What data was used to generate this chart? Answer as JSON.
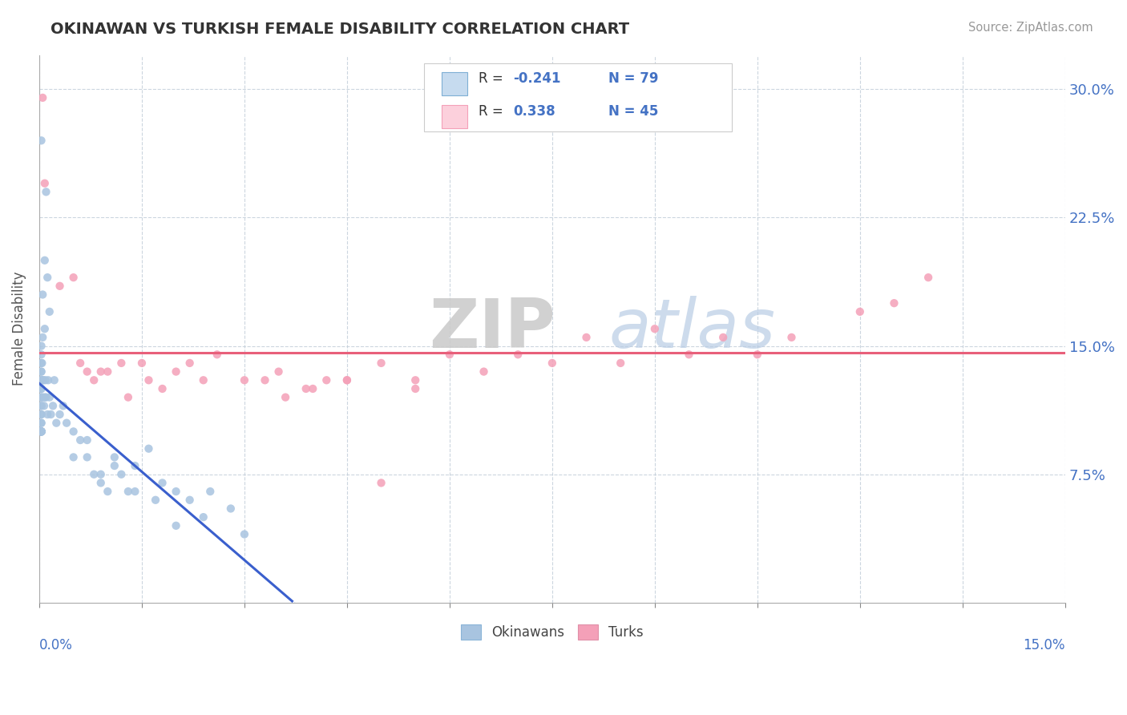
{
  "title": "OKINAWAN VS TURKISH FEMALE DISABILITY CORRELATION CHART",
  "source": "Source: ZipAtlas.com",
  "ylabel": "Female Disability",
  "okinawan_R": -0.241,
  "okinawan_N": 79,
  "turkish_R": 0.338,
  "turkish_N": 45,
  "okinawan_scatter_color": "#a8c4e0",
  "turkish_scatter_color": "#f4a0b8",
  "blue_line_color": "#3a5fcd",
  "pink_line_color": "#e8607a",
  "yticks": [
    0.075,
    0.15,
    0.225,
    0.3
  ],
  "ytick_labels": [
    "7.5%",
    "15.0%",
    "22.5%",
    "30.0%"
  ],
  "xlim": [
    0.0,
    0.15
  ],
  "ylim": [
    0.0,
    0.32
  ],
  "ok_x": [
    0.0003,
    0.001,
    0.0008,
    0.0012,
    0.0005,
    0.0015,
    0.0008,
    0.0005,
    0.0003,
    0.0003,
    0.0003,
    0.0003,
    0.0003,
    0.0003,
    0.0003,
    0.0003,
    0.0003,
    0.0003,
    0.0003,
    0.0003,
    0.0003,
    0.0003,
    0.0003,
    0.0003,
    0.0003,
    0.0003,
    0.0003,
    0.0003,
    0.0003,
    0.0003,
    0.0003,
    0.0003,
    0.0003,
    0.0003,
    0.0003,
    0.0003,
    0.0004,
    0.0005,
    0.0005,
    0.0006,
    0.0007,
    0.0008,
    0.0009,
    0.001,
    0.0012,
    0.0013,
    0.0015,
    0.0017,
    0.002,
    0.0022,
    0.0025,
    0.003,
    0.0035,
    0.004,
    0.005,
    0.006,
    0.007,
    0.008,
    0.009,
    0.01,
    0.011,
    0.012,
    0.013,
    0.014,
    0.016,
    0.018,
    0.02,
    0.022,
    0.025,
    0.028,
    0.005,
    0.007,
    0.009,
    0.011,
    0.014,
    0.017,
    0.02,
    0.024,
    0.03
  ],
  "ok_y": [
    0.27,
    0.24,
    0.2,
    0.19,
    0.18,
    0.17,
    0.16,
    0.155,
    0.15,
    0.145,
    0.14,
    0.135,
    0.135,
    0.13,
    0.13,
    0.125,
    0.125,
    0.12,
    0.12,
    0.115,
    0.115,
    0.11,
    0.11,
    0.105,
    0.105,
    0.1,
    0.1,
    0.1,
    0.1,
    0.1,
    0.1,
    0.1,
    0.1,
    0.1,
    0.1,
    0.1,
    0.14,
    0.13,
    0.12,
    0.13,
    0.115,
    0.12,
    0.13,
    0.12,
    0.11,
    0.13,
    0.12,
    0.11,
    0.115,
    0.13,
    0.105,
    0.11,
    0.115,
    0.105,
    0.1,
    0.095,
    0.085,
    0.075,
    0.07,
    0.065,
    0.085,
    0.075,
    0.065,
    0.08,
    0.09,
    0.07,
    0.065,
    0.06,
    0.065,
    0.055,
    0.085,
    0.095,
    0.075,
    0.08,
    0.065,
    0.06,
    0.045,
    0.05,
    0.04
  ],
  "tr_x": [
    0.0005,
    0.0008,
    0.003,
    0.005,
    0.006,
    0.007,
    0.008,
    0.009,
    0.01,
    0.012,
    0.013,
    0.015,
    0.016,
    0.018,
    0.02,
    0.022,
    0.024,
    0.026,
    0.03,
    0.033,
    0.036,
    0.039,
    0.042,
    0.045,
    0.05,
    0.055,
    0.06,
    0.065,
    0.07,
    0.075,
    0.08,
    0.085,
    0.09,
    0.095,
    0.1,
    0.105,
    0.11,
    0.12,
    0.125,
    0.13,
    0.035,
    0.04,
    0.045,
    0.05,
    0.055
  ],
  "tr_y": [
    0.295,
    0.245,
    0.185,
    0.19,
    0.14,
    0.135,
    0.13,
    0.135,
    0.135,
    0.14,
    0.12,
    0.14,
    0.13,
    0.125,
    0.135,
    0.14,
    0.13,
    0.145,
    0.13,
    0.13,
    0.12,
    0.125,
    0.13,
    0.13,
    0.14,
    0.13,
    0.145,
    0.135,
    0.145,
    0.14,
    0.155,
    0.14,
    0.16,
    0.145,
    0.155,
    0.145,
    0.155,
    0.17,
    0.175,
    0.19,
    0.135,
    0.125,
    0.13,
    0.07,
    0.125
  ]
}
